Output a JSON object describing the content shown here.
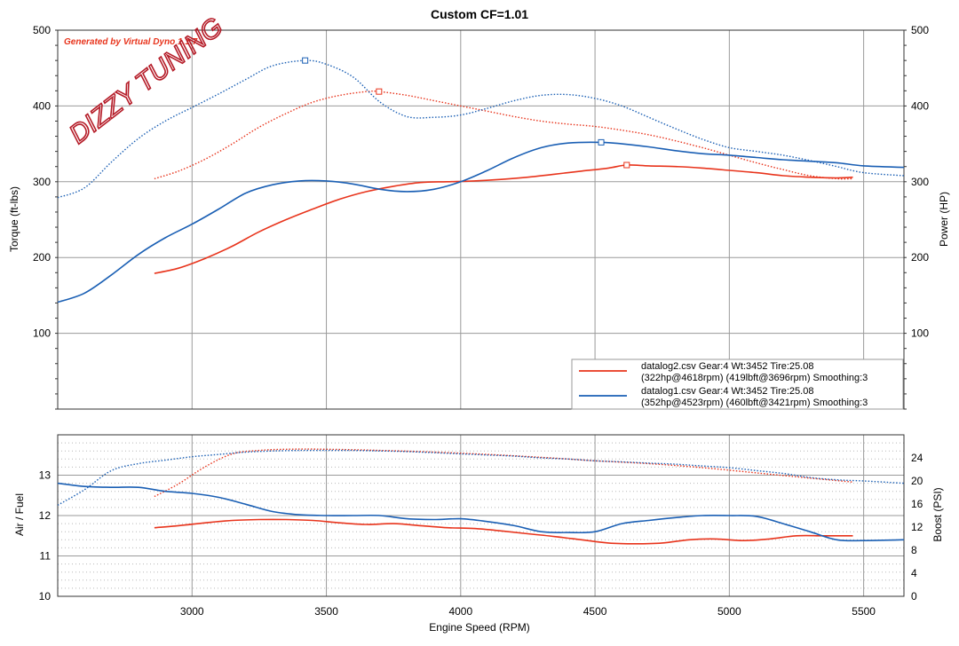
{
  "chart_data": [
    {
      "type": "line",
      "title": "Custom CF=1.01",
      "ylabel": "Torque (ft-lbs)",
      "y2label": "Power (HP)",
      "xlim": [
        2500,
        5650
      ],
      "ylim": [
        0,
        500
      ],
      "y2lim": [
        0,
        500
      ],
      "x_ticks": [
        3000,
        3500,
        4000,
        4500,
        5000,
        5500
      ],
      "y_ticks": [
        100,
        200,
        300,
        400,
        500
      ],
      "y2_ticks": [
        100,
        200,
        300,
        400,
        500
      ],
      "grid": true,
      "watermark": "Generated by Virtual Dyno 1.1.7",
      "logo_text": "DIZZY TUNING",
      "legend_position": "bottom-right",
      "legend": [
        {
          "color": "#e8341c",
          "line1": "datalog2.csv Gear:4 Wt:3452 Tire:25.08",
          "line2": "(322hp@4618rpm) (419lbft@3696rpm) Smoothing:3"
        },
        {
          "color": "#1a5fb4",
          "line1": "datalog1.csv Gear:4 Wt:3452 Tire:25.08",
          "line2": "(352hp@4523rpm) (460lbft@3421rpm) Smoothing:3"
        }
      ],
      "series": [
        {
          "name": "datalog2.csv Power (HP)",
          "style": "solid",
          "color": "#e8341c",
          "axis": "right",
          "x": [
            2860,
            2950,
            3050,
            3150,
            3250,
            3350,
            3450,
            3550,
            3650,
            3750,
            3850,
            3950,
            4050,
            4150,
            4250,
            4350,
            4450,
            4550,
            4618,
            4700,
            4800,
            4900,
            5000,
            5100,
            5200,
            5300,
            5400,
            5460
          ],
          "y": [
            179,
            186,
            199,
            215,
            234,
            250,
            264,
            277,
            287,
            294,
            299,
            300,
            301,
            303,
            306,
            310,
            314,
            318,
            322,
            321,
            320,
            318,
            315,
            312,
            308,
            306,
            305,
            306
          ],
          "peak": {
            "x": 4618,
            "y": 322
          }
        },
        {
          "name": "datalog2.csv Torque (ft-lbs)",
          "style": "dotted",
          "color": "#e8341c",
          "axis": "left",
          "x": [
            2860,
            2950,
            3050,
            3150,
            3250,
            3350,
            3450,
            3550,
            3650,
            3696,
            3800,
            3900,
            4000,
            4100,
            4200,
            4300,
            4400,
            4500,
            4600,
            4700,
            4800,
            4900,
            5000,
            5100,
            5200,
            5300,
            5400,
            5460
          ],
          "y": [
            304,
            314,
            330,
            350,
            372,
            390,
            405,
            414,
            419,
            419,
            414,
            407,
            400,
            393,
            386,
            380,
            376,
            373,
            368,
            362,
            354,
            345,
            335,
            325,
            316,
            308,
            304,
            304
          ],
          "peak": {
            "x": 3696,
            "y": 419
          }
        },
        {
          "name": "datalog1.csv Power (HP)",
          "style": "solid",
          "color": "#1a5fb4",
          "axis": "right",
          "x": [
            2500,
            2600,
            2700,
            2800,
            2900,
            3000,
            3100,
            3200,
            3300,
            3400,
            3500,
            3600,
            3700,
            3800,
            3900,
            4000,
            4100,
            4200,
            4300,
            4400,
            4523,
            4600,
            4700,
            4800,
            4900,
            5000,
            5100,
            5200,
            5300,
            5400,
            5500,
            5650
          ],
          "y": [
            141,
            153,
            177,
            204,
            226,
            244,
            264,
            285,
            296,
            301,
            301,
            297,
            290,
            287,
            290,
            300,
            315,
            332,
            345,
            351,
            352,
            350,
            346,
            341,
            337,
            335,
            332,
            329,
            327,
            325,
            321,
            319
          ],
          "peak": {
            "x": 4523,
            "y": 352
          }
        },
        {
          "name": "datalog1.csv Torque (ft-lbs)",
          "style": "dotted",
          "color": "#1a5fb4",
          "axis": "left",
          "x": [
            2500,
            2600,
            2700,
            2800,
            2900,
            3000,
            3100,
            3200,
            3300,
            3421,
            3500,
            3600,
            3700,
            3800,
            3900,
            4000,
            4100,
            4200,
            4300,
            4400,
            4500,
            4600,
            4700,
            4800,
            4900,
            5000,
            5100,
            5200,
            5300,
            5400,
            5500,
            5650
          ],
          "y": [
            279,
            292,
            326,
            357,
            380,
            398,
            416,
            435,
            453,
            460,
            455,
            438,
            405,
            386,
            385,
            388,
            397,
            407,
            414,
            415,
            410,
            400,
            385,
            370,
            356,
            345,
            340,
            335,
            328,
            320,
            312,
            308
          ],
          "peak": {
            "x": 3421,
            "y": 460
          }
        }
      ]
    },
    {
      "type": "line",
      "xlabel": "Engine Speed (RPM)",
      "ylabel": "Air / Fuel",
      "y2label": "Boost (PSI)",
      "xlim": [
        2500,
        5650
      ],
      "ylim": [
        10,
        14
      ],
      "y2lim": [
        0,
        28
      ],
      "x_ticks": [
        3000,
        3500,
        4000,
        4500,
        5000,
        5500
      ],
      "y_ticks": [
        10,
        11,
        12,
        13
      ],
      "y2_ticks": [
        0,
        4,
        8,
        12,
        16,
        20,
        24
      ],
      "grid": true,
      "series": [
        {
          "name": "datalog2.csv Air / Fuel",
          "style": "solid",
          "color": "#e8341c",
          "axis": "left",
          "x": [
            2860,
            2950,
            3050,
            3150,
            3250,
            3350,
            3450,
            3550,
            3650,
            3750,
            3850,
            3950,
            4050,
            4150,
            4250,
            4350,
            4450,
            4550,
            4650,
            4750,
            4850,
            4950,
            5050,
            5150,
            5250,
            5350,
            5460
          ],
          "y": [
            11.7,
            11.75,
            11.82,
            11.88,
            11.9,
            11.9,
            11.88,
            11.82,
            11.78,
            11.8,
            11.75,
            11.7,
            11.68,
            11.62,
            11.55,
            11.48,
            11.4,
            11.32,
            11.3,
            11.32,
            11.4,
            11.42,
            11.38,
            11.42,
            11.5,
            11.5,
            11.5
          ]
        },
        {
          "name": "datalog2.csv Boost (PSI)",
          "style": "dotted",
          "color": "#e8341c",
          "axis": "right",
          "x": [
            2860,
            2950,
            3050,
            3150,
            3250,
            3350,
            3500,
            3700,
            3900,
            4100,
            4300,
            4500,
            4700,
            4900,
            5100,
            5300,
            5460
          ],
          "y": [
            17.3,
            19.5,
            22.5,
            24.7,
            25.3,
            25.5,
            25.5,
            25.3,
            25.0,
            24.6,
            24.1,
            23.5,
            23.0,
            22.3,
            21.4,
            20.5,
            19.8
          ]
        },
        {
          "name": "datalog1.csv Air / Fuel",
          "style": "solid",
          "color": "#1a5fb4",
          "axis": "left",
          "x": [
            2500,
            2600,
            2700,
            2800,
            2900,
            3000,
            3100,
            3200,
            3300,
            3400,
            3500,
            3600,
            3700,
            3800,
            3900,
            4000,
            4100,
            4200,
            4300,
            4400,
            4500,
            4600,
            4700,
            4800,
            4900,
            5000,
            5100,
            5200,
            5300,
            5400,
            5500,
            5650
          ],
          "y": [
            12.8,
            12.72,
            12.7,
            12.7,
            12.6,
            12.55,
            12.45,
            12.28,
            12.1,
            12.02,
            12.0,
            12.0,
            12.0,
            11.92,
            11.9,
            11.92,
            11.85,
            11.75,
            11.6,
            11.58,
            11.6,
            11.8,
            11.88,
            11.95,
            12.0,
            12.0,
            11.98,
            11.8,
            11.6,
            11.4,
            11.38,
            11.4
          ]
        },
        {
          "name": "datalog1.csv Boost (PSI)",
          "style": "dotted",
          "color": "#1a5fb4",
          "axis": "right",
          "x": [
            2500,
            2600,
            2700,
            2800,
            2900,
            3000,
            3100,
            3200,
            3300,
            3400,
            3500,
            3600,
            3700,
            3800,
            3900,
            4000,
            4100,
            4200,
            4300,
            4400,
            4500,
            4600,
            4700,
            4800,
            4900,
            5000,
            5100,
            5200,
            5300,
            5400,
            5500,
            5650
          ],
          "y": [
            15.8,
            18.5,
            21.8,
            23.0,
            23.6,
            24.2,
            24.6,
            25.0,
            25.2,
            25.3,
            25.3,
            25.3,
            25.2,
            25.1,
            24.9,
            24.7,
            24.5,
            24.3,
            24.0,
            23.8,
            23.5,
            23.3,
            23.1,
            22.9,
            22.6,
            22.3,
            21.8,
            21.3,
            20.6,
            20.2,
            20.0,
            19.6
          ]
        }
      ]
    }
  ]
}
